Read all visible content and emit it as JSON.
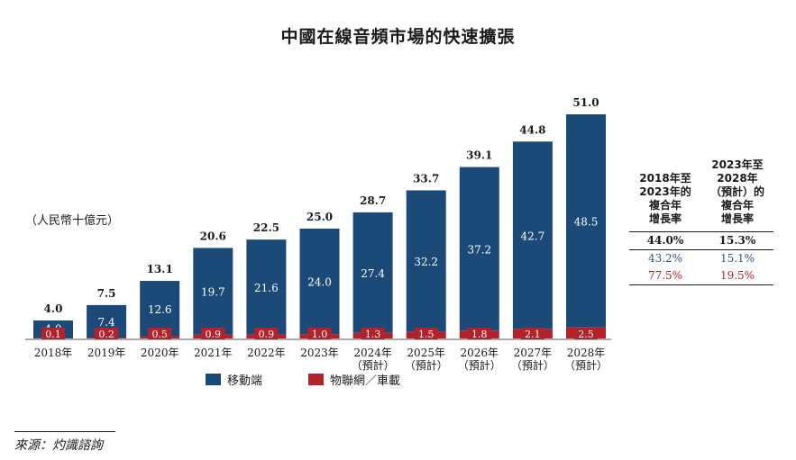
{
  "title": "中國在線音頻市場的快速擴張",
  "unit": "（人民幣十億元）",
  "colors": {
    "mobile": "#1b4a78",
    "iot": "#b3222b",
    "blue_text": "#2e5a8a",
    "red_text": "#b3222b"
  },
  "chart_data": {
    "type": "bar",
    "stacked": true,
    "categories": [
      "2018年",
      "2019年",
      "2020年",
      "2021年",
      "2022年",
      "2023年",
      "2024年\n（預計）",
      "2025年\n（預計）",
      "2026年\n（預計）",
      "2027年\n（預計）",
      "2028年\n（預計）"
    ],
    "series": [
      {
        "name": "物聯網／車載",
        "values": [
          0.1,
          0.2,
          0.5,
          0.9,
          0.9,
          1.0,
          1.3,
          1.5,
          1.8,
          2.1,
          2.5
        ]
      },
      {
        "name": "移動端",
        "values": [
          4.0,
          7.4,
          12.6,
          19.7,
          21.6,
          24.0,
          27.4,
          32.2,
          37.2,
          42.7,
          48.5
        ]
      }
    ],
    "totals": [
      "4.0",
      "7.5",
      "13.1",
      "20.6",
      "22.5",
      "25.0",
      "28.7",
      "33.7",
      "39.1",
      "44.8",
      "51.0"
    ],
    "ylim": [
      0,
      51
    ],
    "legend_position": "bottom"
  },
  "legend": [
    {
      "label": "移動端",
      "color": "#1b4a78"
    },
    {
      "label": "物聯網／車載",
      "color": "#b3222b"
    }
  ],
  "cagr": {
    "headers": [
      "2018年至\n2023年的\n複合年\n增長率",
      "2023年至\n2028年\n（預計）的\n複合年\n增長率"
    ],
    "rows": [
      {
        "values": [
          "44.0%",
          "15.3%"
        ],
        "style": "bold"
      },
      {
        "values": [
          "43.2%",
          "15.1%"
        ],
        "style": "blue"
      },
      {
        "values": [
          "77.5%",
          "19.5%"
        ],
        "style": "red"
      }
    ]
  },
  "source": "來源：灼識諮詢"
}
